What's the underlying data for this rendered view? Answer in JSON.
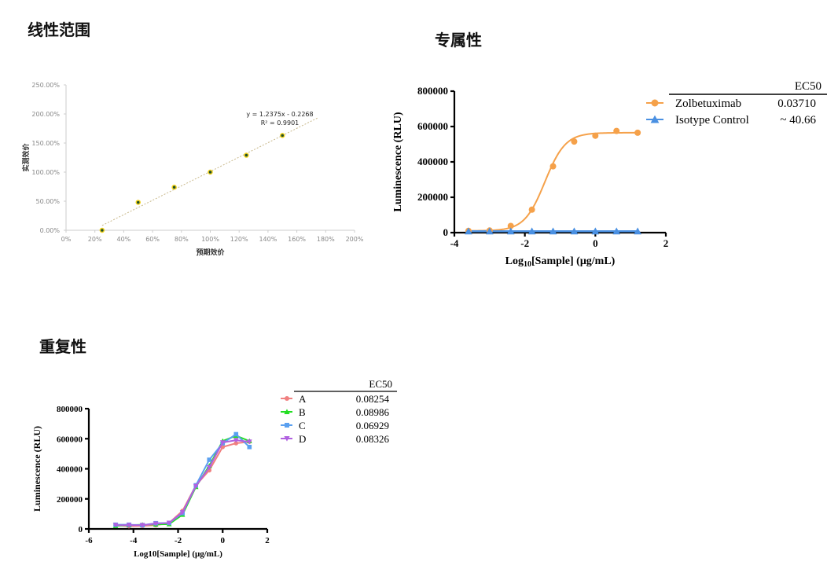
{
  "sections": {
    "linearity_title": "线性范围",
    "specificity_title": "专属性",
    "repeatability_title": "重复性"
  },
  "chart_data": [
    {
      "type": "scatter",
      "xlabel": "预期效价",
      "ylabel": "实测效价",
      "xlim": [
        0,
        200
      ],
      "ylim": [
        0,
        250
      ],
      "x_ticks": [
        "0%",
        "20%",
        "40%",
        "60%",
        "80%",
        "100%",
        "120%",
        "140%",
        "160%",
        "180%",
        "200%"
      ],
      "y_ticks": [
        "0.00%",
        "50.00%",
        "100.00%",
        "150.00%",
        "200.00%",
        "250.00%"
      ],
      "x": [
        25,
        50,
        75,
        100,
        125,
        150
      ],
      "y": [
        0,
        48,
        74,
        100,
        129,
        163
      ],
      "trendline": {
        "slope": 1.2375,
        "intercept": -0.2268,
        "x_range": [
          25,
          175
        ]
      },
      "equation_label": "y = 1.2375x - 0.2268",
      "r2_label": "R² = 0.9901",
      "grid": false,
      "colors": {
        "point": "#1f4e2c",
        "point_edge": "#f2d21b",
        "trend": "#c8b88a"
      }
    },
    {
      "type": "line",
      "xlabel": "Log10[Sample] (μg/mL)",
      "xlabel_main": "Log",
      "xlabel_sub": "10",
      "xlabel_rest": "[Sample] (μg/mL)",
      "ylabel": "Luminescence (RLU)",
      "xlim": [
        -4,
        2
      ],
      "ylim": [
        0,
        800000
      ],
      "x_ticks": [
        "-4",
        "-2",
        "0",
        "2"
      ],
      "y_ticks": [
        "0",
        "200000",
        "400000",
        "600000",
        "800000"
      ],
      "legend_header": "EC50",
      "legend": "top-right",
      "series": [
        {
          "name": "Zolbetuximab",
          "ec50": "0.03710",
          "marker": "circle",
          "color": "#f5a14a",
          "x": [
            -3.6,
            -3.0,
            -2.4,
            -1.8,
            -1.2,
            -0.6,
            0,
            0.6,
            1.2
          ],
          "y": [
            10000,
            12000,
            38000,
            130000,
            375000,
            515000,
            548000,
            575000,
            565000
          ]
        },
        {
          "name": "Isotype Control",
          "ec50": "~ 40.66",
          "marker": "triangle",
          "color": "#4a90e2",
          "x": [
            -3.6,
            -3.0,
            -2.4,
            -1.8,
            -1.2,
            -0.6,
            0,
            0.6,
            1.2
          ],
          "y": [
            8000,
            8000,
            8000,
            8000,
            8000,
            8000,
            8000,
            8000,
            8000
          ]
        }
      ],
      "grid": false
    },
    {
      "type": "line",
      "xlabel": "Log10[Sample] (μg/mL)",
      "ylabel": "Luminescence (RLU)",
      "xlim": [
        -6,
        2
      ],
      "ylim": [
        0,
        800000
      ],
      "x_ticks": [
        "-6",
        "-4",
        "-2",
        "0",
        "2"
      ],
      "y_ticks": [
        "0",
        "200000",
        "400000",
        "600000",
        "800000"
      ],
      "legend_header": "EC50",
      "legend": "top-right",
      "x": [
        -4.8,
        -4.2,
        -3.6,
        -3.0,
        -2.4,
        -1.8,
        -1.2,
        -0.6,
        0,
        0.6,
        1.2
      ],
      "series": [
        {
          "name": "A",
          "ec50": "0.08254",
          "marker": "circle",
          "color": "#f08080",
          "y": [
            25000,
            18000,
            20000,
            25000,
            40000,
            120000,
            290000,
            390000,
            545000,
            570000,
            580000
          ]
        },
        {
          "name": "B",
          "ec50": "0.08986",
          "marker": "triangle",
          "color": "#22dd22",
          "y": [
            20000,
            25000,
            28000,
            30000,
            32000,
            95000,
            280000,
            420000,
            585000,
            620000,
            585000
          ]
        },
        {
          "name": "C",
          "ec50": "0.06929",
          "marker": "square",
          "color": "#5aa0f0",
          "y": [
            28000,
            28000,
            25000,
            38000,
            40000,
            105000,
            290000,
            460000,
            570000,
            630000,
            545000
          ]
        },
        {
          "name": "D",
          "ec50": "0.08326",
          "marker": "triangle-down",
          "color": "#b060e0",
          "y": [
            25000,
            25000,
            25000,
            35000,
            40000,
            110000,
            285000,
            410000,
            575000,
            590000,
            580000
          ]
        }
      ],
      "grid": false
    }
  ]
}
